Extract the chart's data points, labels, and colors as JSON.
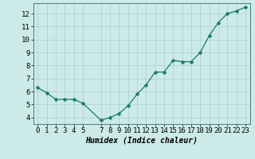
{
  "x": [
    0,
    1,
    2,
    3,
    4,
    5,
    7,
    8,
    9,
    10,
    11,
    12,
    13,
    14,
    15,
    16,
    17,
    18,
    19,
    20,
    21,
    22,
    23
  ],
  "y": [
    6.3,
    5.9,
    5.4,
    5.4,
    5.4,
    5.1,
    3.8,
    4.0,
    4.3,
    4.9,
    5.8,
    6.5,
    7.5,
    7.5,
    8.4,
    8.3,
    8.3,
    9.0,
    10.3,
    11.3,
    12.0,
    12.2,
    12.5
  ],
  "line_color": "#1a7a6e",
  "marker": "D",
  "marker_size": 2.5,
  "background_color": "#cceae8",
  "grid_color": "#b0d4d0",
  "xlabel": "Humidex (Indice chaleur)",
  "xlim": [
    -0.5,
    23.5
  ],
  "ylim": [
    3.5,
    12.8
  ],
  "yticks": [
    4,
    5,
    6,
    7,
    8,
    9,
    10,
    11,
    12
  ],
  "xticks": [
    0,
    1,
    2,
    3,
    4,
    5,
    7,
    8,
    9,
    10,
    11,
    12,
    13,
    14,
    15,
    16,
    17,
    18,
    19,
    20,
    21,
    22,
    23
  ],
  "xlabel_fontsize": 7,
  "tick_fontsize": 6.5
}
